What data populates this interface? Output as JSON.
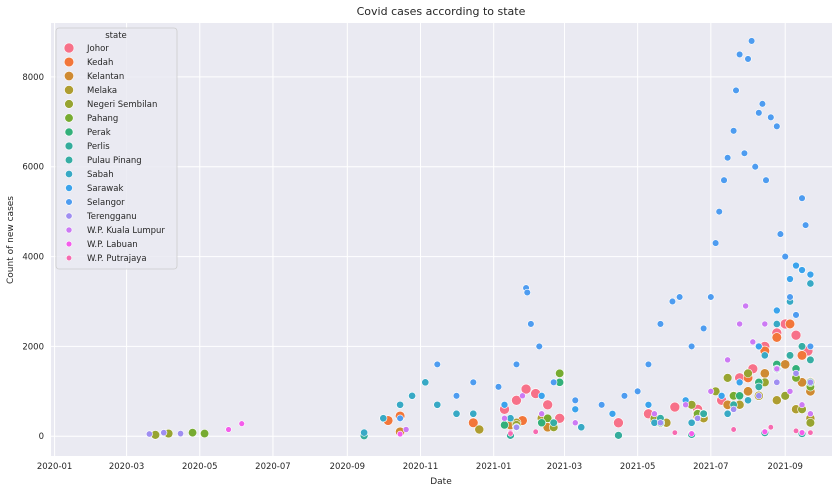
{
  "chart_data": {
    "type": "scatter",
    "title": "Covid cases according to state",
    "xlabel": "Date",
    "ylabel": "Count of new cases",
    "x_range": [
      "2019-12-29",
      "2021-10-10"
    ],
    "ylim": [
      -440,
      9200
    ],
    "x_ticks": [
      "2020-01",
      "2020-03",
      "2020-05",
      "2020-07",
      "2020-09",
      "2020-11",
      "2021-01",
      "2021-03",
      "2021-05",
      "2021-07",
      "2021-09"
    ],
    "y_ticks": [
      0,
      2000,
      4000,
      6000,
      8000
    ],
    "grid": true,
    "background": "#eaeaf2",
    "legend": {
      "title": "state",
      "placement": "top-left",
      "entries": [
        "Johor",
        "Kedah",
        "Kelantan",
        "Melaka",
        "Negeri Sembilan",
        "Pahang",
        "Perak",
        "Perlis",
        "Pulau Pinang",
        "Sabah",
        "Sarawak",
        "Selangor",
        "Terengganu",
        "W.P. Kuala Lumpur",
        "W.P. Labuan",
        "W.P. Putrajaya"
      ]
    },
    "series": [
      {
        "name": "Johor",
        "color": "#f77189",
        "points": [
          [
            "2021-01-10",
            600
          ],
          [
            "2021-01-20",
            800
          ],
          [
            "2021-01-28",
            1050
          ],
          [
            "2021-02-05",
            950
          ],
          [
            "2021-02-15",
            700
          ],
          [
            "2021-02-25",
            400
          ],
          [
            "2021-04-15",
            300
          ],
          [
            "2021-05-10",
            500
          ],
          [
            "2021-06-01",
            650
          ],
          [
            "2021-06-20",
            600
          ],
          [
            "2021-07-10",
            800
          ],
          [
            "2021-07-25",
            1300
          ],
          [
            "2021-08-05",
            1500
          ],
          [
            "2021-08-15",
            2000
          ],
          [
            "2021-08-25",
            2300
          ],
          [
            "2021-09-01",
            2500
          ],
          [
            "2021-09-10",
            2250
          ],
          [
            "2021-09-20",
            1900
          ]
        ]
      },
      {
        "name": "Kedah",
        "color": "#f2763a",
        "points": [
          [
            "2020-10-05",
            350
          ],
          [
            "2020-10-15",
            450
          ],
          [
            "2020-12-15",
            300
          ],
          [
            "2021-01-25",
            350
          ],
          [
            "2021-05-20",
            300
          ],
          [
            "2021-06-20",
            500
          ],
          [
            "2021-07-20",
            900
          ],
          [
            "2021-08-01",
            1300
          ],
          [
            "2021-08-15",
            1900
          ],
          [
            "2021-08-25",
            2200
          ],
          [
            "2021-09-05",
            2500
          ],
          [
            "2021-09-15",
            1800
          ],
          [
            "2021-09-22",
            1200
          ]
        ]
      },
      {
        "name": "Kelantan",
        "color": "#cf8a32",
        "points": [
          [
            "2020-10-15",
            100
          ],
          [
            "2021-01-15",
            250
          ],
          [
            "2021-02-15",
            200
          ],
          [
            "2021-05-15",
            350
          ],
          [
            "2021-06-20",
            450
          ],
          [
            "2021-07-15",
            700
          ],
          [
            "2021-08-01",
            1000
          ],
          [
            "2021-08-15",
            1400
          ],
          [
            "2021-09-01",
            1600
          ],
          [
            "2021-09-15",
            1200
          ],
          [
            "2021-09-22",
            1000
          ]
        ]
      },
      {
        "name": "Melaka",
        "color": "#ae9d31",
        "points": [
          [
            "2020-12-20",
            150
          ],
          [
            "2021-01-20",
            300
          ],
          [
            "2021-02-10",
            400
          ],
          [
            "2021-05-25",
            300
          ],
          [
            "2021-06-25",
            400
          ],
          [
            "2021-07-25",
            700
          ],
          [
            "2021-08-10",
            900
          ],
          [
            "2021-08-25",
            800
          ],
          [
            "2021-09-10",
            600
          ],
          [
            "2021-09-22",
            400
          ]
        ]
      },
      {
        "name": "Negeri Sembilan",
        "color": "#97a431",
        "points": [
          [
            "2020-03-25",
            30
          ],
          [
            "2020-04-05",
            60
          ],
          [
            "2021-01-20",
            250
          ],
          [
            "2021-02-20",
            200
          ],
          [
            "2021-05-15",
            400
          ],
          [
            "2021-06-15",
            700
          ],
          [
            "2021-07-05",
            1000
          ],
          [
            "2021-07-15",
            1300
          ],
          [
            "2021-08-01",
            1400
          ],
          [
            "2021-08-15",
            1200
          ],
          [
            "2021-09-01",
            900
          ],
          [
            "2021-09-15",
            600
          ],
          [
            "2021-09-22",
            300
          ]
        ]
      },
      {
        "name": "Pahang",
        "color": "#77ab31",
        "points": [
          [
            "2020-04-25",
            80
          ],
          [
            "2020-05-05",
            60
          ],
          [
            "2021-02-15",
            400
          ],
          [
            "2021-02-25",
            1400
          ],
          [
            "2021-05-20",
            300
          ],
          [
            "2021-06-20",
            500
          ],
          [
            "2021-07-20",
            900
          ],
          [
            "2021-08-10",
            1200
          ],
          [
            "2021-08-25",
            1500
          ],
          [
            "2021-09-10",
            1300
          ],
          [
            "2021-09-22",
            1100
          ]
        ]
      },
      {
        "name": "Perak",
        "color": "#33b07a",
        "points": [
          [
            "2021-01-10",
            250
          ],
          [
            "2021-02-10",
            300
          ],
          [
            "2021-02-25",
            1200
          ],
          [
            "2021-05-20",
            300
          ],
          [
            "2021-06-25",
            500
          ],
          [
            "2021-07-25",
            900
          ],
          [
            "2021-08-10",
            1200
          ],
          [
            "2021-08-25",
            1600
          ],
          [
            "2021-09-10",
            1500
          ],
          [
            "2021-09-22",
            1200
          ]
        ]
      },
      {
        "name": "Perlis",
        "color": "#35ac9c",
        "points": [
          [
            "2020-09-15",
            10
          ],
          [
            "2021-01-15",
            20
          ],
          [
            "2021-04-15",
            20
          ],
          [
            "2021-06-15",
            40
          ],
          [
            "2021-08-15",
            80
          ],
          [
            "2021-09-15",
            60
          ]
        ]
      },
      {
        "name": "Pulau Pinang",
        "color": "#36ada4",
        "points": [
          [
            "2021-01-20",
            200
          ],
          [
            "2021-02-20",
            300
          ],
          [
            "2021-05-20",
            400
          ],
          [
            "2021-06-25",
            500
          ],
          [
            "2021-07-20",
            700
          ],
          [
            "2021-08-10",
            1100
          ],
          [
            "2021-08-25",
            1500
          ],
          [
            "2021-09-05",
            1800
          ],
          [
            "2021-09-15",
            2000
          ],
          [
            "2021-09-22",
            1700
          ]
        ]
      },
      {
        "name": "Sabah",
        "color": "#38a9c5",
        "points": [
          [
            "2020-09-15",
            80
          ],
          [
            "2020-10-01",
            400
          ],
          [
            "2020-10-15",
            700
          ],
          [
            "2020-10-25",
            900
          ],
          [
            "2020-11-05",
            1200
          ],
          [
            "2020-11-15",
            700
          ],
          [
            "2020-12-01",
            500
          ],
          [
            "2020-12-15",
            500
          ],
          [
            "2021-01-15",
            400
          ],
          [
            "2021-03-15",
            200
          ],
          [
            "2021-05-15",
            300
          ],
          [
            "2021-06-15",
            300
          ],
          [
            "2021-07-15",
            500
          ],
          [
            "2021-08-01",
            800
          ],
          [
            "2021-08-15",
            1800
          ],
          [
            "2021-08-25",
            2500
          ],
          [
            "2021-09-05",
            3000
          ],
          [
            "2021-09-15",
            3700
          ],
          [
            "2021-09-22",
            3400
          ]
        ]
      },
      {
        "name": "Sarawak",
        "color": "#3ba3ec",
        "points": [
          [
            "2021-01-10",
            700
          ],
          [
            "2021-02-10",
            900
          ],
          [
            "2021-03-10",
            600
          ],
          [
            "2021-04-10",
            500
          ],
          [
            "2021-05-10",
            700
          ],
          [
            "2021-06-10",
            800
          ],
          [
            "2021-07-10",
            900
          ],
          [
            "2021-07-25",
            1200
          ],
          [
            "2021-08-10",
            2000
          ],
          [
            "2021-08-25",
            2800
          ],
          [
            "2021-09-05",
            3500
          ],
          [
            "2021-09-10",
            3800
          ],
          [
            "2021-09-15",
            3700
          ],
          [
            "2021-09-22",
            3600
          ]
        ]
      },
      {
        "name": "Selangor",
        "color": "#4e9cf0",
        "points": [
          [
            "2020-10-15",
            400
          ],
          [
            "2020-11-15",
            1600
          ],
          [
            "2020-12-01",
            900
          ],
          [
            "2020-12-15",
            1200
          ],
          [
            "2021-01-05",
            1100
          ],
          [
            "2021-01-20",
            1600
          ],
          [
            "2021-01-28",
            3300
          ],
          [
            "2021-01-29",
            3200
          ],
          [
            "2021-02-01",
            2500
          ],
          [
            "2021-02-08",
            2000
          ],
          [
            "2021-02-20",
            1200
          ],
          [
            "2021-03-10",
            800
          ],
          [
            "2021-04-01",
            700
          ],
          [
            "2021-04-20",
            900
          ],
          [
            "2021-05-01",
            1000
          ],
          [
            "2021-05-10",
            1600
          ],
          [
            "2021-05-20",
            2500
          ],
          [
            "2021-05-30",
            3000
          ],
          [
            "2021-06-05",
            3100
          ],
          [
            "2021-06-15",
            2000
          ],
          [
            "2021-06-25",
            2400
          ],
          [
            "2021-07-01",
            3100
          ],
          [
            "2021-07-05",
            4300
          ],
          [
            "2021-07-08",
            5000
          ],
          [
            "2021-07-12",
            5700
          ],
          [
            "2021-07-15",
            6200
          ],
          [
            "2021-07-20",
            6800
          ],
          [
            "2021-07-22",
            7700
          ],
          [
            "2021-07-25",
            8500
          ],
          [
            "2021-07-29",
            6300
          ],
          [
            "2021-08-01",
            8400
          ],
          [
            "2021-08-04",
            8800
          ],
          [
            "2021-08-07",
            6000
          ],
          [
            "2021-08-10",
            7200
          ],
          [
            "2021-08-13",
            7400
          ],
          [
            "2021-08-16",
            5700
          ],
          [
            "2021-08-20",
            7100
          ],
          [
            "2021-08-25",
            6900
          ],
          [
            "2021-08-28",
            4500
          ],
          [
            "2021-09-01",
            4000
          ],
          [
            "2021-09-05",
            3100
          ],
          [
            "2021-09-10",
            2700
          ],
          [
            "2021-09-15",
            5300
          ],
          [
            "2021-09-18",
            4700
          ],
          [
            "2021-09-22",
            2000
          ]
        ]
      },
      {
        "name": "Terengganu",
        "color": "#9f8ef1",
        "points": [
          [
            "2020-03-20",
            50
          ],
          [
            "2020-04-01",
            80
          ],
          [
            "2020-04-15",
            60
          ],
          [
            "2021-01-20",
            200
          ],
          [
            "2021-05-20",
            300
          ],
          [
            "2021-06-20",
            400
          ],
          [
            "2021-07-20",
            600
          ],
          [
            "2021-08-10",
            900
          ],
          [
            "2021-08-25",
            1200
          ],
          [
            "2021-09-10",
            1400
          ],
          [
            "2021-09-22",
            1200
          ]
        ]
      },
      {
        "name": "W.P. Kuala Lumpur",
        "color": "#cc7af4",
        "points": [
          [
            "2020-10-20",
            150
          ],
          [
            "2021-01-10",
            400
          ],
          [
            "2021-01-25",
            900
          ],
          [
            "2021-02-10",
            500
          ],
          [
            "2021-03-10",
            300
          ],
          [
            "2021-05-15",
            500
          ],
          [
            "2021-06-10",
            700
          ],
          [
            "2021-07-01",
            1000
          ],
          [
            "2021-07-15",
            1700
          ],
          [
            "2021-07-25",
            2500
          ],
          [
            "2021-07-30",
            2900
          ],
          [
            "2021-08-05",
            2100
          ],
          [
            "2021-08-15",
            2500
          ],
          [
            "2021-08-25",
            1500
          ],
          [
            "2021-09-05",
            1000
          ],
          [
            "2021-09-15",
            700
          ],
          [
            "2021-09-22",
            500
          ]
        ]
      },
      {
        "name": "W.P. Labuan",
        "color": "#f45deb",
        "points": [
          [
            "2020-05-25",
            150
          ],
          [
            "2020-06-05",
            280
          ],
          [
            "2020-10-15",
            50
          ],
          [
            "2021-01-15",
            80
          ],
          [
            "2021-06-15",
            60
          ],
          [
            "2021-08-15",
            100
          ],
          [
            "2021-09-15",
            80
          ]
        ]
      },
      {
        "name": "W.P. Putrajaya",
        "color": "#f66ab0",
        "points": [
          [
            "2021-01-15",
            60
          ],
          [
            "2021-02-05",
            100
          ],
          [
            "2021-06-01",
            80
          ],
          [
            "2021-07-20",
            150
          ],
          [
            "2021-08-20",
            200
          ],
          [
            "2021-09-10",
            120
          ],
          [
            "2021-09-22",
            80
          ]
        ]
      }
    ]
  }
}
